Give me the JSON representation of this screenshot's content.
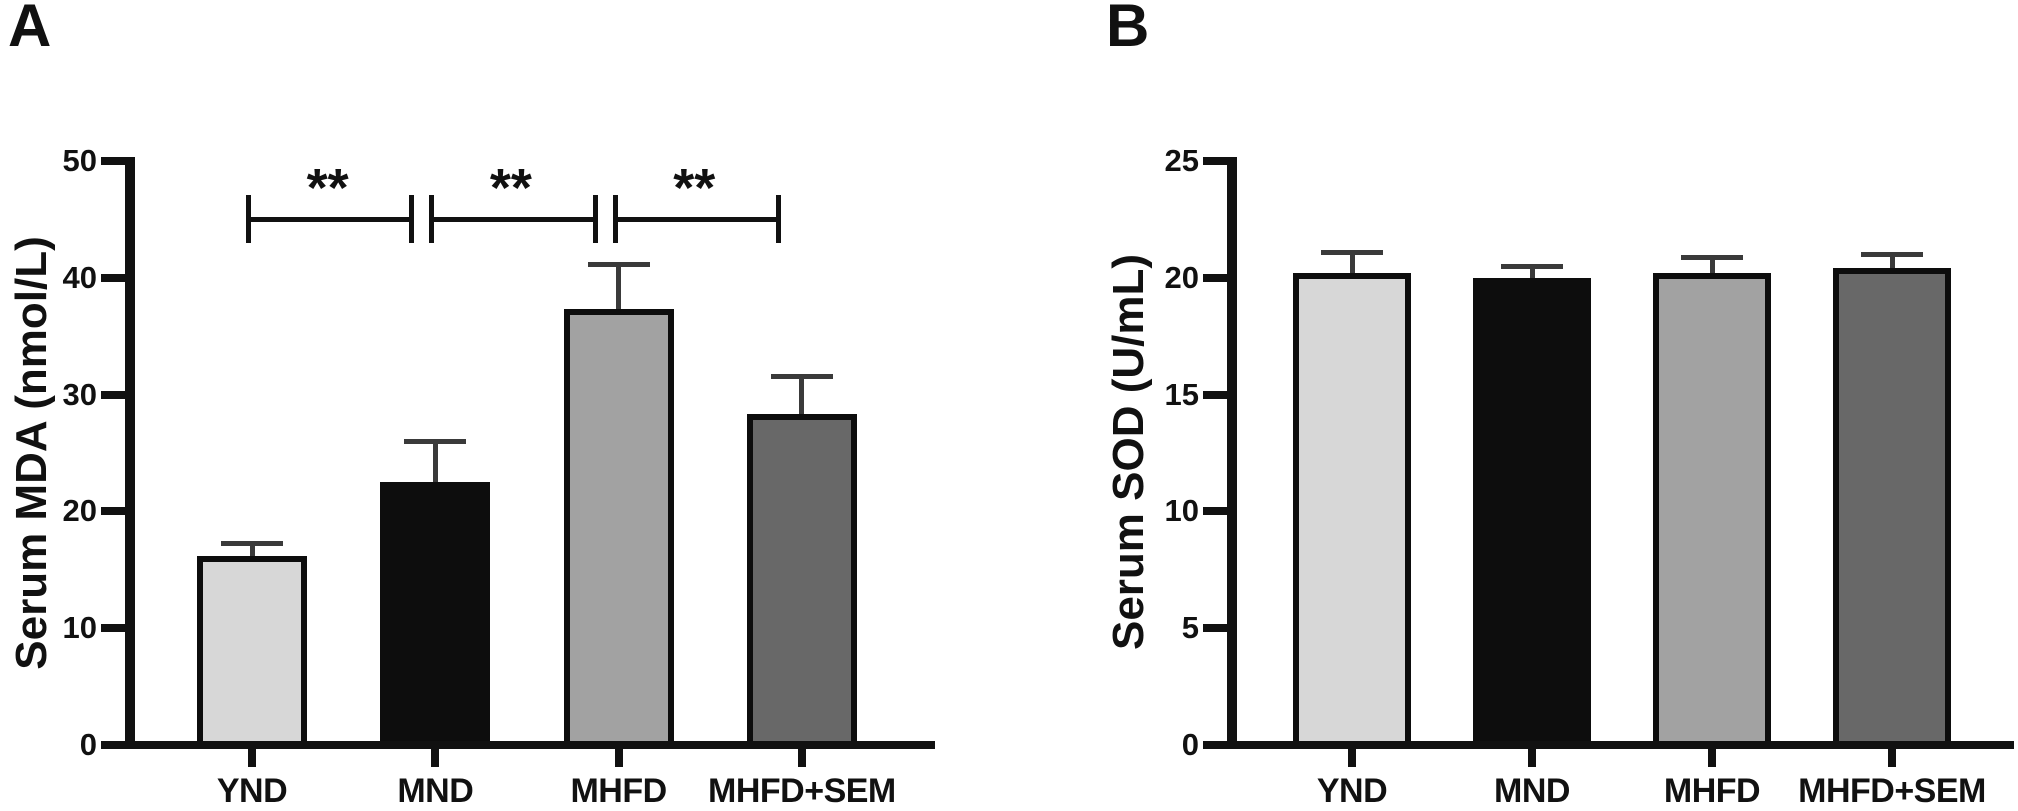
{
  "figure_type": "two-panel scientific bar figure",
  "panels": {
    "a": {
      "letter": "A",
      "ylabel": "Serum MDA (nmol/L)"
    },
    "b": {
      "letter": "B",
      "ylabel": "Serum SOD (U/mL)"
    }
  },
  "colors": {
    "axis": "#111111",
    "bar_border": "#0d0d0d",
    "error_bar": "#3a3a3a",
    "background": "#ffffff",
    "text": "#111111"
  },
  "chart_data": [
    {
      "type": "bar",
      "panel_letter": "A",
      "title": "",
      "xlabel": "",
      "ylabel": "Serum MDA (nmol/L)",
      "ylim": [
        0,
        50
      ],
      "yticks": [
        0,
        10,
        20,
        30,
        40,
        50
      ],
      "grid": false,
      "legend": "none",
      "categories": [
        "YND",
        "MND",
        "MHFD",
        "MHFD+SEM"
      ],
      "values": [
        16.2,
        22.5,
        37.3,
        28.3
      ],
      "errors_plus": [
        1.1,
        3.5,
        3.9,
        3.3
      ],
      "bar_fill_colors": [
        "#d7d7d7",
        "#0d0d0d",
        "#a2a2a2",
        "#686868"
      ],
      "significance_brackets": [
        {
          "between": [
            "YND",
            "MND"
          ],
          "label": "**",
          "height": 45
        },
        {
          "between": [
            "MND",
            "MHFD"
          ],
          "label": "**",
          "height": 45
        },
        {
          "between": [
            "MHFD",
            "MHFD+SEM"
          ],
          "label": "**",
          "height": 45
        }
      ]
    },
    {
      "type": "bar",
      "panel_letter": "B",
      "title": "",
      "xlabel": "",
      "ylabel": "Serum SOD (U/mL)",
      "ylim": [
        0,
        25
      ],
      "yticks": [
        0,
        5,
        10,
        15,
        20,
        25
      ],
      "grid": false,
      "legend": "none",
      "categories": [
        "YND",
        "MND",
        "MHFD",
        "MHFD+SEM"
      ],
      "values": [
        20.2,
        20.0,
        20.2,
        20.4
      ],
      "errors_plus": [
        0.9,
        0.5,
        0.7,
        0.6
      ],
      "bar_fill_colors": [
        "#d7d7d7",
        "#0d0d0d",
        "#a2a2a2",
        "#686868"
      ],
      "significance_brackets": []
    }
  ]
}
